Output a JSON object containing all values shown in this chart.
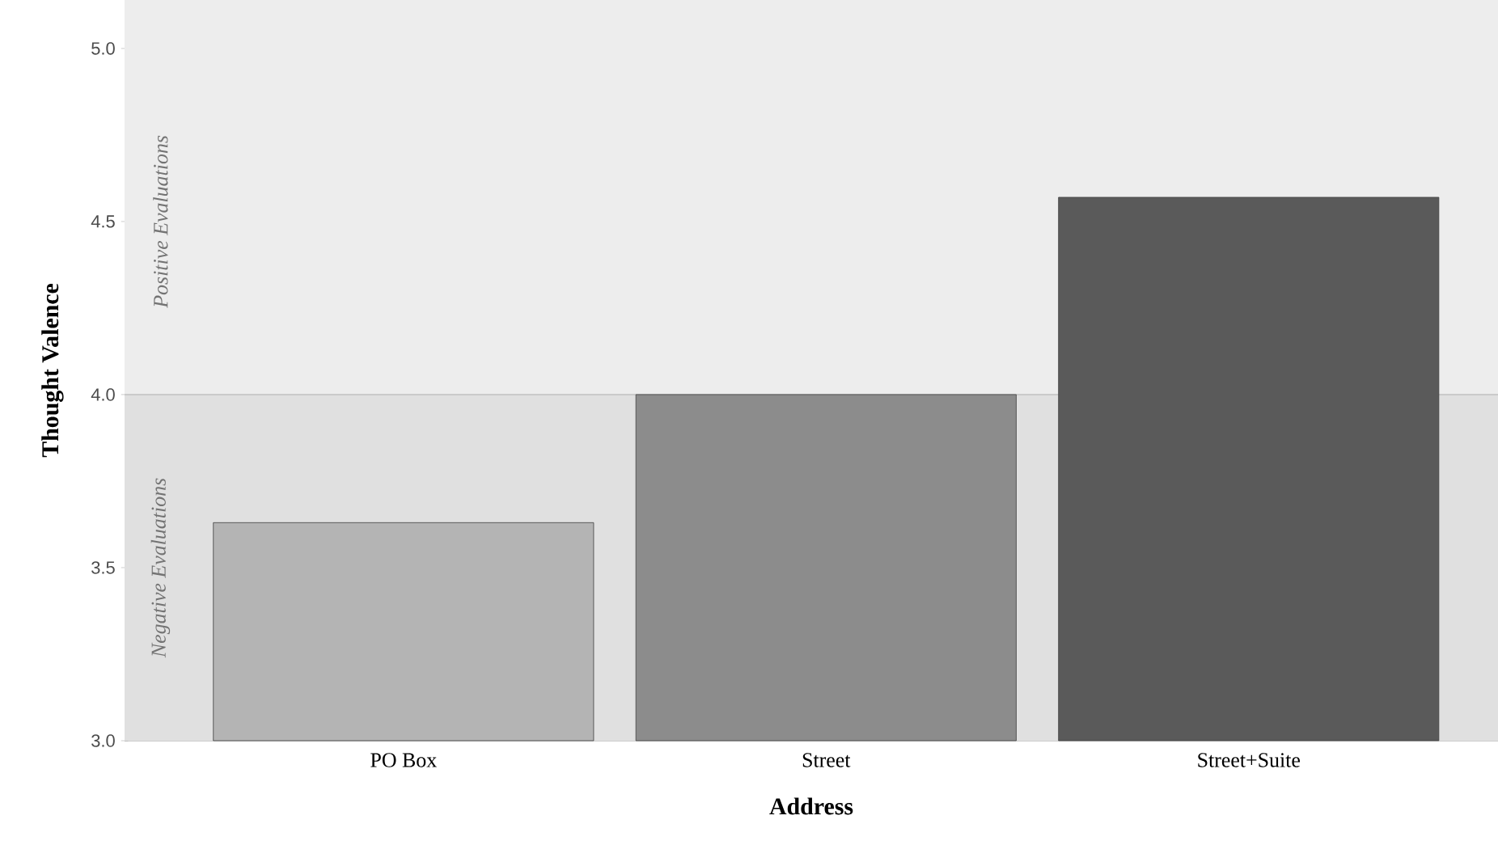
{
  "chart_data": {
    "type": "bar",
    "xlabel": "Address",
    "ylabel": "Thought Valence",
    "categories": [
      "PO Box",
      "Street",
      "Street+Suite"
    ],
    "values": [
      3.63,
      4.0,
      4.57
    ],
    "colors": [
      "#b4b4b4",
      "#8c8c8c",
      "#5a5a5a"
    ],
    "ylim": [
      3,
      5.14
    ],
    "yticks": [
      {
        "value": 3,
        "label": "3.0"
      },
      {
        "value": 3.5,
        "label": "3.5"
      },
      {
        "value": 4,
        "label": "4.0"
      },
      {
        "value": 4.5,
        "label": "4.5"
      },
      {
        "value": 5,
        "label": "5.0"
      }
    ],
    "ref_lines": [
      {
        "axis": "y",
        "value": 4,
        "color": "#a0a0a0"
      }
    ],
    "bands": [
      {
        "axis": "y",
        "from": 3,
        "to": 4,
        "label": "Negative Evaluations",
        "color": "#e0e0e0"
      },
      {
        "axis": "y",
        "from": 4,
        "to": 5.14,
        "label": "Positive Evaluations",
        "color": "#ededed"
      }
    ],
    "grid": false
  }
}
